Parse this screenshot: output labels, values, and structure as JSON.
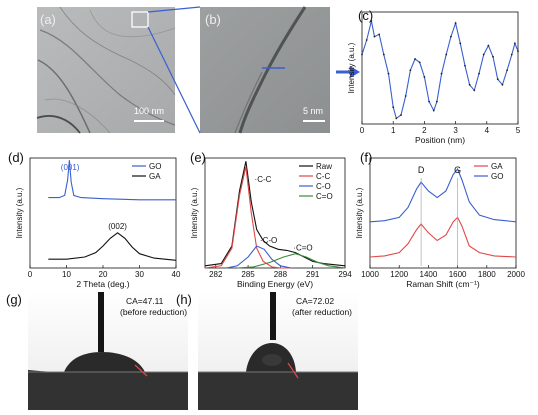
{
  "panels": {
    "a": {
      "label": "(a)",
      "scalebar": "100 nm"
    },
    "b": {
      "label": "(b)",
      "scalebar": "5 nm"
    },
    "c": {
      "label": "(c)"
    },
    "d": {
      "label": "(d)"
    },
    "e": {
      "label": "(e)"
    },
    "f": {
      "label": "(f)"
    },
    "g": {
      "label": "(g)",
      "ca": "CA=47.11",
      "note": "(before reduction)"
    },
    "h": {
      "label": "(h)",
      "ca": "CA=72.02",
      "note": "(after reduction)"
    }
  },
  "colors": {
    "blue": "#3a5fd0",
    "red": "#e04848",
    "black": "#111111",
    "green": "#3a8a3a"
  },
  "chart_data": [
    {
      "id": "c",
      "type": "line",
      "xlabel": "Position (nm)",
      "ylabel": "Intensity (a.u.)",
      "xlim": [
        0,
        5
      ],
      "xticks": [
        0,
        1,
        2,
        3,
        4,
        5
      ],
      "series": [
        {
          "color": "blue",
          "x": [
            0.0,
            0.15,
            0.3,
            0.4,
            0.55,
            0.7,
            0.85,
            1.0,
            1.1,
            1.25,
            1.4,
            1.55,
            1.7,
            1.85,
            2.0,
            2.15,
            2.3,
            2.4,
            2.55,
            2.7,
            2.85,
            3.0,
            3.15,
            3.3,
            3.45,
            3.6,
            3.75,
            3.9,
            4.05,
            4.2,
            4.35,
            4.5,
            4.65,
            4.8,
            4.9,
            5.0
          ],
          "y": [
            0.62,
            0.75,
            0.92,
            0.78,
            0.8,
            0.62,
            0.45,
            0.15,
            0.05,
            0.08,
            0.25,
            0.48,
            0.58,
            0.55,
            0.42,
            0.2,
            0.12,
            0.2,
            0.45,
            0.62,
            0.78,
            0.9,
            0.72,
            0.52,
            0.35,
            0.3,
            0.45,
            0.62,
            0.7,
            0.6,
            0.4,
            0.35,
            0.48,
            0.62,
            0.72,
            0.65
          ]
        }
      ]
    },
    {
      "id": "d",
      "type": "line",
      "xlabel": "2 Theta (deg.)",
      "ylabel": "Intensity (a.u.)",
      "xlim": [
        0,
        40
      ],
      "xticks": [
        0,
        10,
        20,
        30,
        40
      ],
      "legend": [
        "GO",
        "GA"
      ],
      "annotations": [
        "(001)",
        "(002)"
      ],
      "series": [
        {
          "name": "GO",
          "color": "blue",
          "x": [
            5,
            8,
            9.5,
            10.3,
            10.8,
            11.3,
            12,
            14,
            20,
            30,
            40
          ],
          "y": [
            0.64,
            0.64,
            0.66,
            0.8,
            0.98,
            0.78,
            0.66,
            0.64,
            0.63,
            0.62,
            0.62
          ]
        },
        {
          "name": "GA",
          "color": "black",
          "x": [
            5,
            10,
            15,
            18,
            20,
            22,
            24,
            26,
            28,
            30,
            34,
            40
          ],
          "y": [
            0.08,
            0.08,
            0.1,
            0.14,
            0.2,
            0.27,
            0.32,
            0.27,
            0.19,
            0.13,
            0.09,
            0.07
          ]
        }
      ]
    },
    {
      "id": "e",
      "type": "line",
      "xlabel": "Binding Energy (eV)",
      "ylabel": "Intensity (a.u.)",
      "xlim": [
        281,
        294
      ],
      "xticks": [
        282,
        285,
        288,
        291,
        294
      ],
      "legend": [
        "Raw",
        "C-C",
        "C-O",
        "C=O"
      ],
      "annotations": [
        "C-C",
        "C-O",
        "C=O"
      ],
      "series": [
        {
          "name": "Raw",
          "color": "black",
          "x": [
            281,
            282.5,
            283.5,
            284.2,
            284.8,
            285.3,
            285.8,
            286.4,
            287.0,
            287.8,
            288.6,
            289.4,
            290.2,
            291,
            292,
            293,
            294
          ],
          "y": [
            0.02,
            0.04,
            0.2,
            0.7,
            0.97,
            0.6,
            0.35,
            0.25,
            0.2,
            0.17,
            0.16,
            0.14,
            0.1,
            0.06,
            0.04,
            0.03,
            0.02
          ]
        },
        {
          "name": "C-C",
          "color": "red",
          "x": [
            281,
            282.5,
            283.5,
            284.2,
            284.8,
            285.3,
            285.8,
            286.4,
            287.2,
            288,
            289
          ],
          "y": [
            0.0,
            0.02,
            0.18,
            0.66,
            0.92,
            0.5,
            0.18,
            0.06,
            0.01,
            0.0,
            0.0
          ]
        },
        {
          "name": "C-O",
          "color": "blue",
          "x": [
            283,
            284,
            285,
            285.8,
            286.5,
            287.2,
            288,
            289
          ],
          "y": [
            0.0,
            0.02,
            0.1,
            0.2,
            0.17,
            0.08,
            0.02,
            0.0
          ]
        },
        {
          "name": "C=O",
          "color": "green",
          "x": [
            284,
            285.5,
            287,
            288.3,
            289.4,
            290.4,
            291.5,
            292.5,
            294
          ],
          "y": [
            0.0,
            0.01,
            0.05,
            0.1,
            0.13,
            0.1,
            0.05,
            0.02,
            0.0
          ]
        }
      ]
    },
    {
      "id": "f",
      "type": "line",
      "xlabel": "Raman Shift (cm⁻¹)",
      "ylabel": "Intensity (a.u.)",
      "xlim": [
        1000,
        2000
      ],
      "xticks": [
        1000,
        1200,
        1400,
        1600,
        1800,
        2000
      ],
      "legend": [
        "GA",
        "GO"
      ],
      "annotations": [
        "D",
        "G"
      ],
      "series": [
        {
          "name": "GO",
          "color": "blue",
          "x": [
            1000,
            1100,
            1200,
            1260,
            1320,
            1350,
            1400,
            1460,
            1520,
            1570,
            1600,
            1630,
            1680,
            1750,
            1850,
            2000
          ],
          "y": [
            0.42,
            0.43,
            0.46,
            0.55,
            0.72,
            0.78,
            0.7,
            0.64,
            0.7,
            0.85,
            0.9,
            0.8,
            0.6,
            0.48,
            0.44,
            0.42
          ]
        },
        {
          "name": "GA",
          "color": "red",
          "x": [
            1000,
            1100,
            1200,
            1260,
            1320,
            1350,
            1400,
            1460,
            1520,
            1570,
            1600,
            1630,
            1680,
            1750,
            1850,
            2000
          ],
          "y": [
            0.1,
            0.11,
            0.14,
            0.22,
            0.35,
            0.4,
            0.32,
            0.25,
            0.3,
            0.42,
            0.46,
            0.38,
            0.2,
            0.14,
            0.11,
            0.1
          ]
        }
      ]
    }
  ]
}
